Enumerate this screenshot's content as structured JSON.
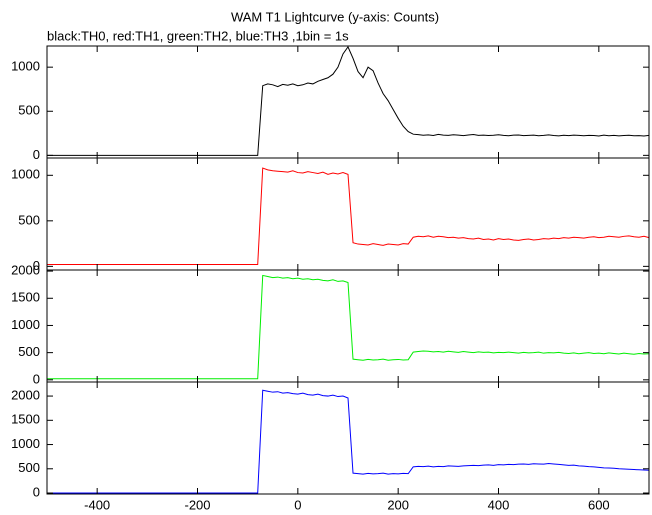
{
  "chart_data": [
    {
      "type": "line",
      "title": "WAM T1 Lightcurve (y-axis: Counts)",
      "subtitle": "black:TH0, red:TH1, green:TH2, blue:TH3 ,1bin = 1s",
      "color": "#000000",
      "xlim": [
        -500,
        700
      ],
      "xticks": [
        -400,
        -200,
        0,
        200,
        400,
        600
      ],
      "ylim": [
        -30,
        1240
      ],
      "yticks": [
        0,
        500,
        1000
      ],
      "x": [
        -500,
        -490,
        -480,
        -470,
        -460,
        -450,
        -440,
        -430,
        -420,
        -410,
        -400,
        -390,
        -380,
        -370,
        -360,
        -350,
        -340,
        -330,
        -320,
        -310,
        -300,
        -290,
        -280,
        -270,
        -260,
        -250,
        -240,
        -230,
        -220,
        -210,
        -200,
        -190,
        -180,
        -170,
        -160,
        -150,
        -140,
        -130,
        -120,
        -110,
        -100,
        -90,
        -80,
        -70,
        -60,
        -50,
        -40,
        -30,
        -20,
        -10,
        0,
        10,
        20,
        30,
        40,
        50,
        60,
        70,
        80,
        90,
        100,
        110,
        120,
        130,
        140,
        150,
        160,
        170,
        180,
        190,
        200,
        210,
        220,
        230,
        240,
        250,
        260,
        270,
        280,
        290,
        300,
        310,
        320,
        330,
        340,
        350,
        360,
        370,
        380,
        390,
        400,
        410,
        420,
        430,
        440,
        450,
        460,
        470,
        480,
        490,
        500,
        510,
        520,
        530,
        540,
        550,
        560,
        570,
        580,
        590,
        600,
        610,
        620,
        630,
        640,
        650,
        660,
        670,
        680,
        690,
        700
      ],
      "values": [
        0,
        0,
        0,
        0,
        0,
        0,
        0,
        0,
        0,
        0,
        0,
        0,
        0,
        0,
        0,
        0,
        0,
        0,
        0,
        0,
        0,
        0,
        0,
        0,
        0,
        0,
        0,
        0,
        0,
        0,
        0,
        0,
        0,
        0,
        0,
        0,
        0,
        0,
        0,
        0,
        0,
        0,
        0,
        790,
        810,
        800,
        780,
        805,
        795,
        810,
        790,
        800,
        820,
        810,
        840,
        860,
        880,
        920,
        1000,
        1150,
        1230,
        1100,
        950,
        880,
        1000,
        960,
        820,
        700,
        620,
        520,
        420,
        330,
        270,
        240,
        235,
        228,
        232,
        225,
        238,
        230,
        226,
        233,
        229,
        224,
        231,
        236,
        227,
        230,
        225,
        228,
        233,
        226,
        222,
        229,
        231,
        224,
        227,
        230,
        223,
        226,
        232,
        225,
        221,
        228,
        224,
        230,
        226,
        222,
        227,
        225,
        220,
        229,
        223,
        226,
        221,
        225,
        228,
        222,
        224,
        219,
        226
      ]
    },
    {
      "type": "line",
      "color": "#ff0000",
      "xlim": [
        -500,
        700
      ],
      "xticks": [
        -400,
        -200,
        0,
        200,
        400,
        600
      ],
      "ylim": [
        -40,
        1190
      ],
      "yticks": [
        0,
        500,
        1000
      ],
      "x": [
        -500,
        -490,
        -480,
        -470,
        -460,
        -450,
        -440,
        -430,
        -420,
        -410,
        -400,
        -390,
        -380,
        -370,
        -360,
        -350,
        -340,
        -330,
        -320,
        -310,
        -300,
        -290,
        -280,
        -270,
        -260,
        -250,
        -240,
        -230,
        -220,
        -210,
        -200,
        -190,
        -180,
        -170,
        -160,
        -150,
        -140,
        -130,
        -120,
        -110,
        -100,
        -90,
        -80,
        -70,
        -60,
        -50,
        -40,
        -30,
        -20,
        -10,
        0,
        10,
        20,
        30,
        40,
        50,
        60,
        70,
        80,
        90,
        100,
        110,
        120,
        130,
        140,
        150,
        160,
        170,
        180,
        190,
        200,
        210,
        220,
        230,
        240,
        250,
        260,
        270,
        280,
        290,
        300,
        310,
        320,
        330,
        340,
        350,
        360,
        370,
        380,
        390,
        400,
        410,
        420,
        430,
        440,
        450,
        460,
        470,
        480,
        490,
        500,
        510,
        520,
        530,
        540,
        550,
        560,
        570,
        580,
        590,
        600,
        610,
        620,
        630,
        640,
        650,
        660,
        670,
        680,
        690,
        700
      ],
      "values": [
        20,
        20,
        20,
        20,
        20,
        20,
        20,
        20,
        20,
        20,
        20,
        20,
        20,
        20,
        20,
        20,
        20,
        20,
        20,
        20,
        20,
        20,
        20,
        20,
        20,
        20,
        20,
        20,
        20,
        20,
        20,
        20,
        20,
        20,
        20,
        20,
        20,
        20,
        20,
        20,
        20,
        20,
        20,
        1080,
        1060,
        1050,
        1045,
        1040,
        1035,
        1050,
        1030,
        1025,
        1040,
        1030,
        1020,
        1035,
        1010,
        1025,
        1015,
        1030,
        1010,
        260,
        245,
        240,
        235,
        250,
        240,
        230,
        245,
        240,
        235,
        250,
        245,
        320,
        330,
        325,
        335,
        320,
        330,
        325,
        315,
        320,
        310,
        315,
        305,
        300,
        310,
        295,
        300,
        290,
        305,
        295,
        300,
        290,
        285,
        295,
        300,
        290,
        295,
        305,
        300,
        310,
        305,
        315,
        310,
        320,
        315,
        310,
        320,
        325,
        315,
        320,
        330,
        325,
        320,
        330,
        335,
        325,
        320,
        330,
        315
      ]
    },
    {
      "type": "line",
      "color": "#00ee00",
      "xlim": [
        -500,
        700
      ],
      "xticks": [
        -400,
        -200,
        0,
        200,
        400,
        600
      ],
      "ylim": [
        -40,
        2020
      ],
      "yticks": [
        0,
        500,
        1000,
        1500,
        2000
      ],
      "x": [
        -500,
        -490,
        -480,
        -470,
        -460,
        -450,
        -440,
        -430,
        -420,
        -410,
        -400,
        -390,
        -380,
        -370,
        -360,
        -350,
        -340,
        -330,
        -320,
        -310,
        -300,
        -290,
        -280,
        -270,
        -260,
        -250,
        -240,
        -230,
        -220,
        -210,
        -200,
        -190,
        -180,
        -170,
        -160,
        -150,
        -140,
        -130,
        -120,
        -110,
        -100,
        -90,
        -80,
        -70,
        -60,
        -50,
        -40,
        -30,
        -20,
        -10,
        0,
        10,
        20,
        30,
        40,
        50,
        60,
        70,
        80,
        90,
        100,
        110,
        120,
        130,
        140,
        150,
        160,
        170,
        180,
        190,
        200,
        210,
        220,
        230,
        240,
        250,
        260,
        270,
        280,
        290,
        300,
        310,
        320,
        330,
        340,
        350,
        360,
        370,
        380,
        390,
        400,
        410,
        420,
        430,
        440,
        450,
        460,
        470,
        480,
        490,
        500,
        510,
        520,
        530,
        540,
        550,
        560,
        570,
        580,
        590,
        600,
        610,
        620,
        630,
        640,
        650,
        660,
        670,
        680,
        690,
        700
      ],
      "values": [
        20,
        20,
        20,
        20,
        20,
        20,
        20,
        20,
        20,
        20,
        20,
        20,
        20,
        20,
        20,
        20,
        20,
        20,
        20,
        20,
        20,
        20,
        20,
        20,
        20,
        20,
        20,
        20,
        20,
        20,
        20,
        20,
        20,
        20,
        20,
        20,
        20,
        20,
        20,
        20,
        20,
        20,
        20,
        1920,
        1900,
        1880,
        1890,
        1870,
        1880,
        1860,
        1870,
        1850,
        1860,
        1840,
        1850,
        1830,
        1820,
        1840,
        1810,
        1820,
        1790,
        380,
        370,
        360,
        375,
        365,
        370,
        380,
        360,
        370,
        375,
        365,
        370,
        510,
        520,
        530,
        525,
        515,
        520,
        510,
        525,
        515,
        505,
        520,
        510,
        500,
        515,
        505,
        510,
        495,
        505,
        500,
        510,
        500,
        490,
        505,
        495,
        500,
        510,
        490,
        500,
        495,
        505,
        490,
        485,
        495,
        480,
        490,
        500,
        485,
        490,
        480,
        495,
        485,
        475,
        490,
        480,
        470,
        485,
        475,
        480
      ]
    },
    {
      "type": "line",
      "color": "#0000ff",
      "xlim": [
        -500,
        700
      ],
      "xticks": [
        -400,
        -200,
        0,
        200,
        400,
        600
      ],
      "ylim": [
        -20,
        2290
      ],
      "yticks": [
        0,
        500,
        1000,
        1500,
        2000
      ],
      "x": [
        -500,
        -490,
        -480,
        -470,
        -460,
        -450,
        -440,
        -430,
        -420,
        -410,
        -400,
        -390,
        -380,
        -370,
        -360,
        -350,
        -340,
        -330,
        -320,
        -310,
        -300,
        -290,
        -280,
        -270,
        -260,
        -250,
        -240,
        -230,
        -220,
        -210,
        -200,
        -190,
        -180,
        -170,
        -160,
        -150,
        -140,
        -130,
        -120,
        -110,
        -100,
        -90,
        -80,
        -70,
        -60,
        -50,
        -40,
        -30,
        -20,
        -10,
        0,
        10,
        20,
        30,
        40,
        50,
        60,
        70,
        80,
        90,
        100,
        110,
        120,
        130,
        140,
        150,
        160,
        170,
        180,
        190,
        200,
        210,
        220,
        230,
        240,
        250,
        260,
        270,
        280,
        290,
        300,
        310,
        320,
        330,
        340,
        350,
        360,
        370,
        380,
        390,
        400,
        410,
        420,
        430,
        440,
        450,
        460,
        470,
        480,
        490,
        500,
        510,
        520,
        530,
        540,
        550,
        560,
        570,
        580,
        590,
        600,
        610,
        620,
        630,
        640,
        650,
        660,
        670,
        680,
        690,
        700
      ],
      "values": [
        0,
        0,
        0,
        0,
        0,
        0,
        0,
        0,
        0,
        0,
        0,
        0,
        0,
        0,
        0,
        0,
        0,
        0,
        0,
        0,
        0,
        0,
        0,
        0,
        0,
        0,
        0,
        0,
        0,
        0,
        0,
        0,
        0,
        0,
        0,
        0,
        0,
        0,
        0,
        0,
        0,
        0,
        0,
        2120,
        2100,
        2080,
        2090,
        2060,
        2070,
        2050,
        2040,
        2060,
        2030,
        2020,
        2040,
        2010,
        2000,
        2020,
        1990,
        2000,
        1960,
        410,
        400,
        390,
        405,
        395,
        400,
        410,
        390,
        400,
        395,
        405,
        400,
        540,
        550,
        545,
        555,
        540,
        550,
        545,
        560,
        555,
        550,
        560,
        565,
        570,
        565,
        575,
        580,
        570,
        585,
        580,
        590,
        585,
        595,
        600,
        590,
        605,
        600,
        595,
        610,
        600,
        590,
        580,
        570,
        575,
        560,
        555,
        545,
        540,
        530,
        520,
        515,
        510,
        500,
        495,
        490,
        485,
        480,
        475,
        470
      ]
    }
  ]
}
